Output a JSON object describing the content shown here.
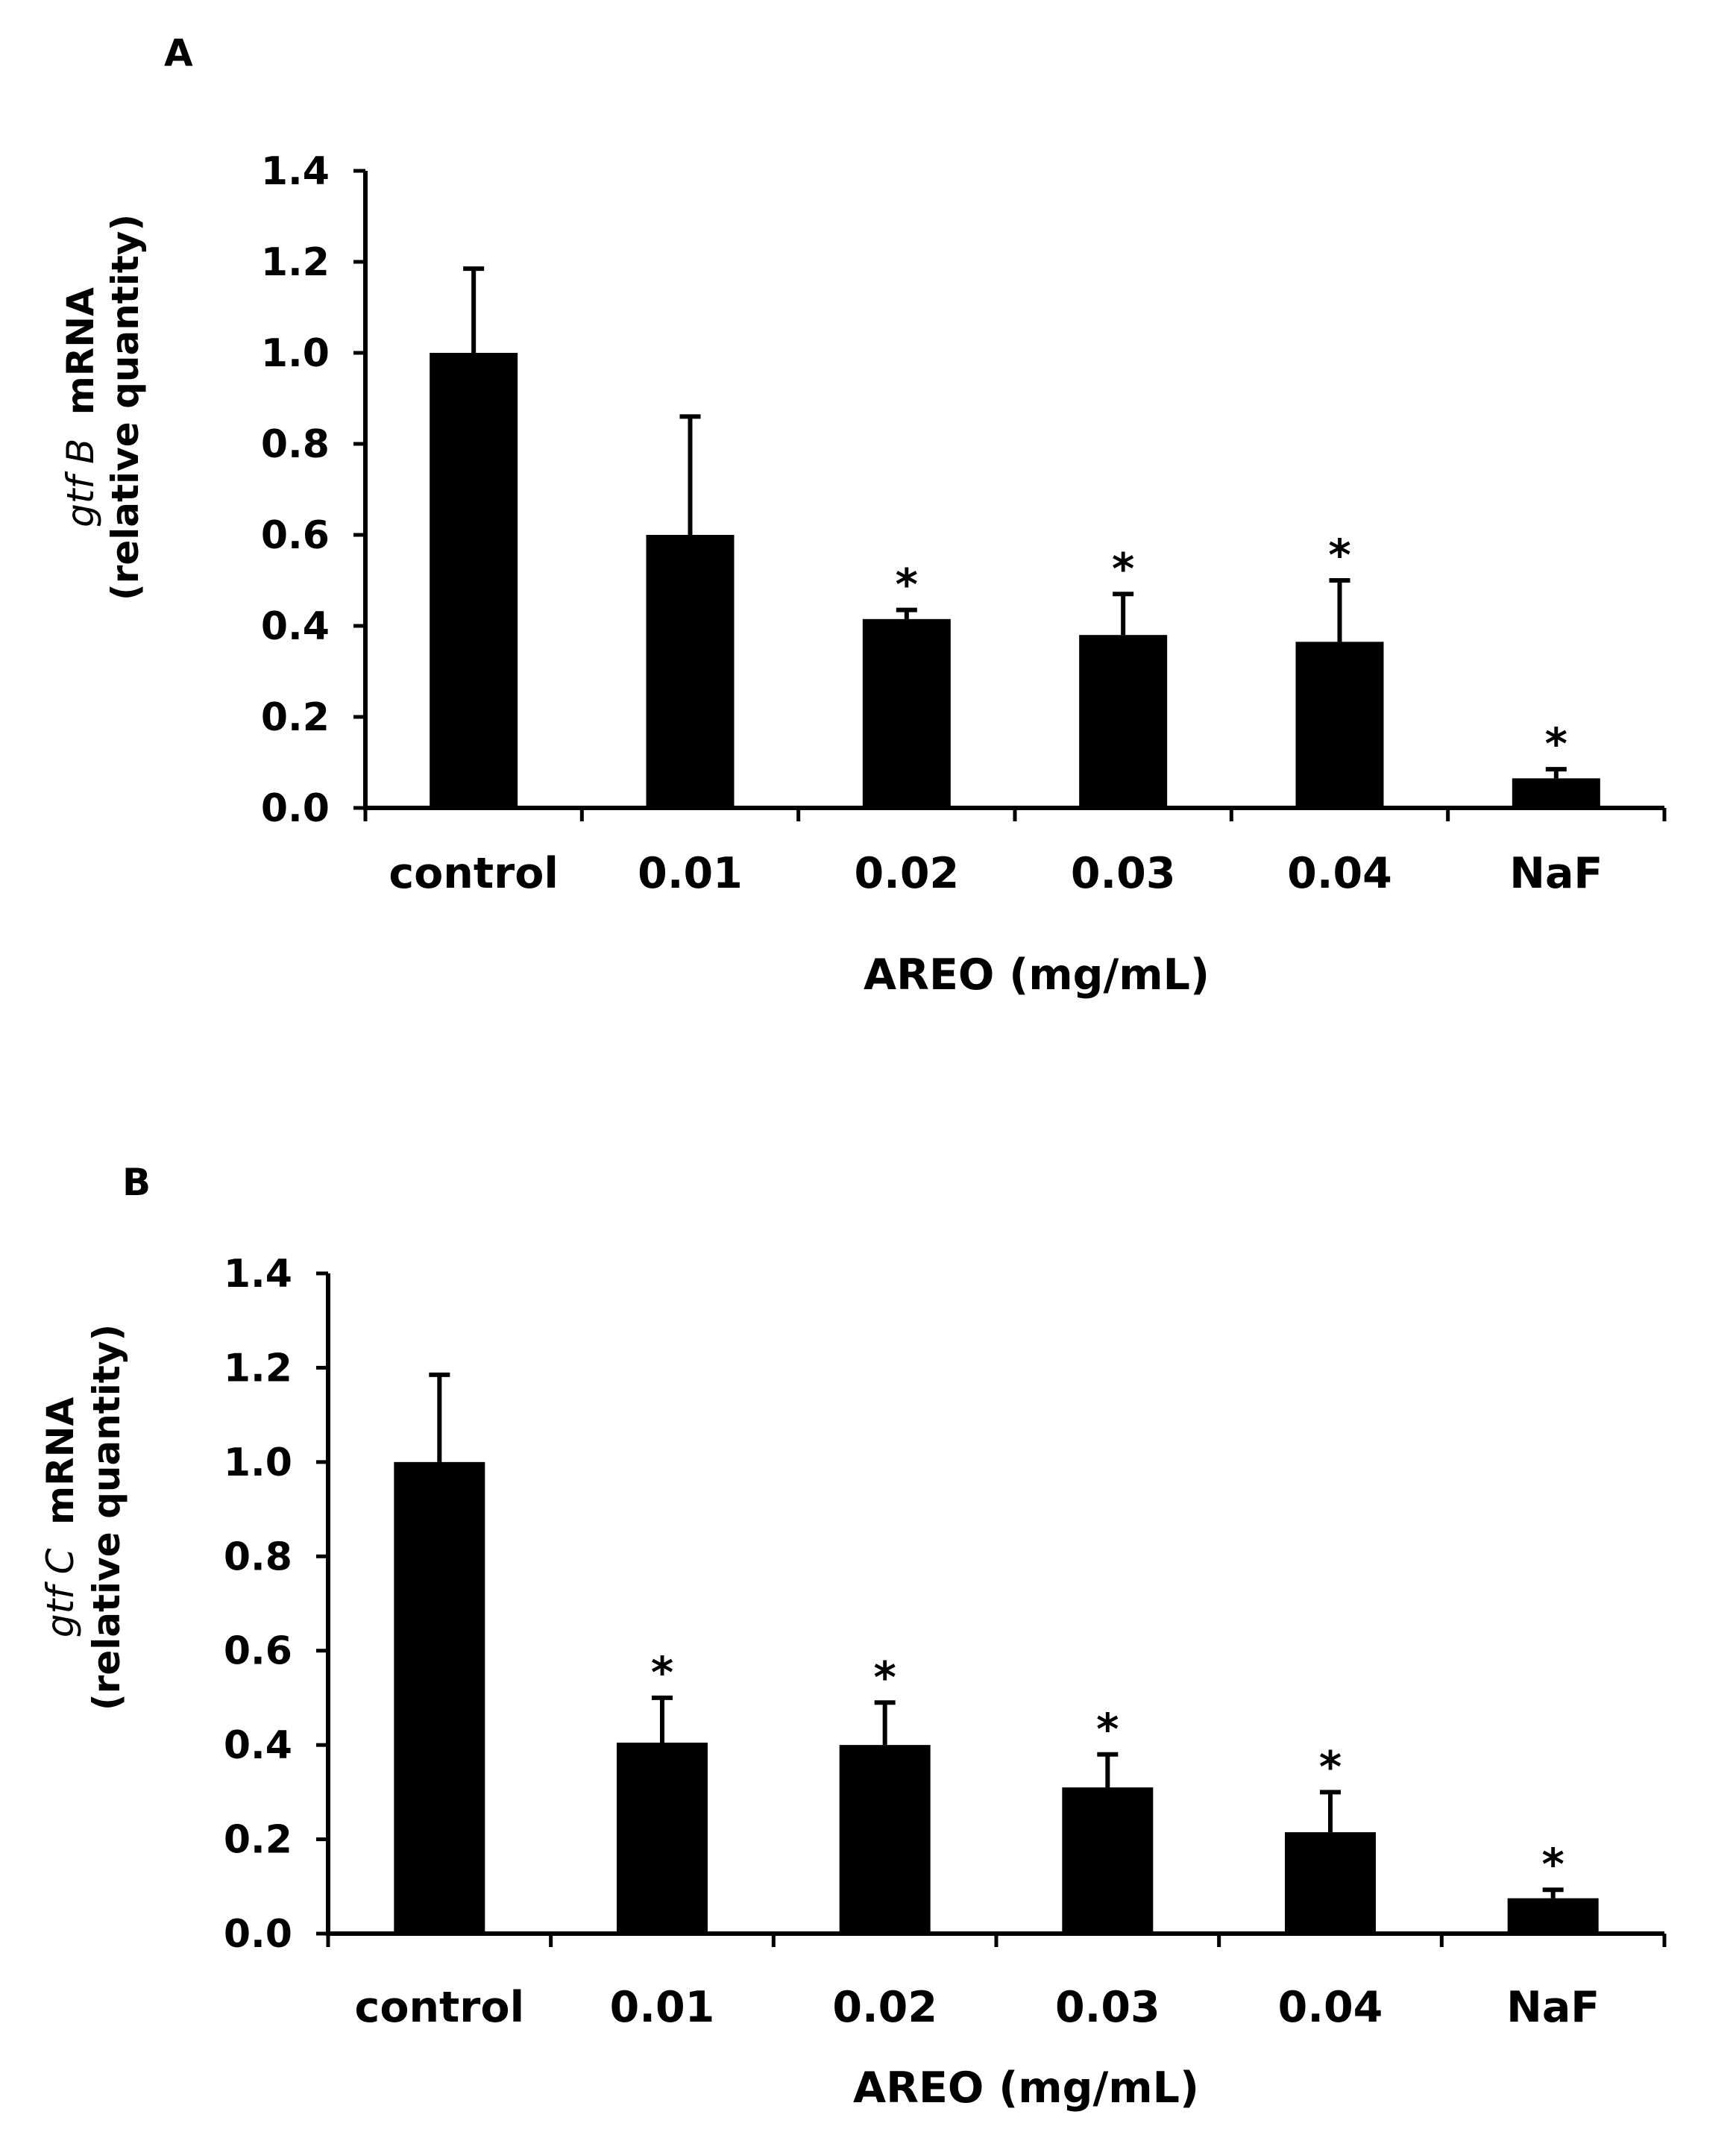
{
  "panels": [
    {
      "panel_label": "A",
      "ylabel_gene": "gtf B",
      "ylabel_suffix": "mRNA",
      "ylabel_line2": "(relative quantity)",
      "xlabel": "AREO (mg/mL)"
    },
    {
      "panel_label": "B",
      "ylabel_gene": "gtf C",
      "ylabel_suffix": "mRNA",
      "ylabel_line2": "(relative quantity)",
      "xlabel": "AREO (mg/mL)"
    }
  ],
  "chart_data": [
    {
      "type": "bar",
      "title": "",
      "categories": [
        "control",
        "0.01",
        "0.02",
        "0.03",
        "0.04",
        "NaF"
      ],
      "values": [
        1.0,
        0.6,
        0.415,
        0.38,
        0.365,
        0.065
      ],
      "errors": [
        0.185,
        0.26,
        0.02,
        0.09,
        0.135,
        0.02
      ],
      "significance": [
        "",
        "",
        "*",
        "*",
        "*",
        "*"
      ],
      "ylabel": "gtf B mRNA (relative quantity)",
      "xlabel": "AREO (mg/mL)",
      "ylim": [
        0,
        1.4
      ],
      "yticks": [
        "0.0",
        "0.2",
        "0.4",
        "0.6",
        "0.8",
        "1.0",
        "1.2",
        "1.4"
      ],
      "bar_color": "#000000",
      "grid": false
    },
    {
      "type": "bar",
      "title": "",
      "categories": [
        "control",
        "0.01",
        "0.02",
        "0.03",
        "0.04",
        "NaF"
      ],
      "values": [
        1.0,
        0.405,
        0.4,
        0.31,
        0.215,
        0.075
      ],
      "errors": [
        0.185,
        0.095,
        0.09,
        0.07,
        0.085,
        0.018
      ],
      "significance": [
        "",
        "*",
        "*",
        "*",
        "*",
        "*"
      ],
      "ylabel": "gtf C mRNA (relative quantity)",
      "xlabel": "AREO (mg/mL)",
      "ylim": [
        0,
        1.4
      ],
      "yticks": [
        "0.0",
        "0.2",
        "0.4",
        "0.6",
        "0.8",
        "1.0",
        "1.2",
        "1.4"
      ],
      "bar_color": "#000000",
      "grid": false
    }
  ]
}
